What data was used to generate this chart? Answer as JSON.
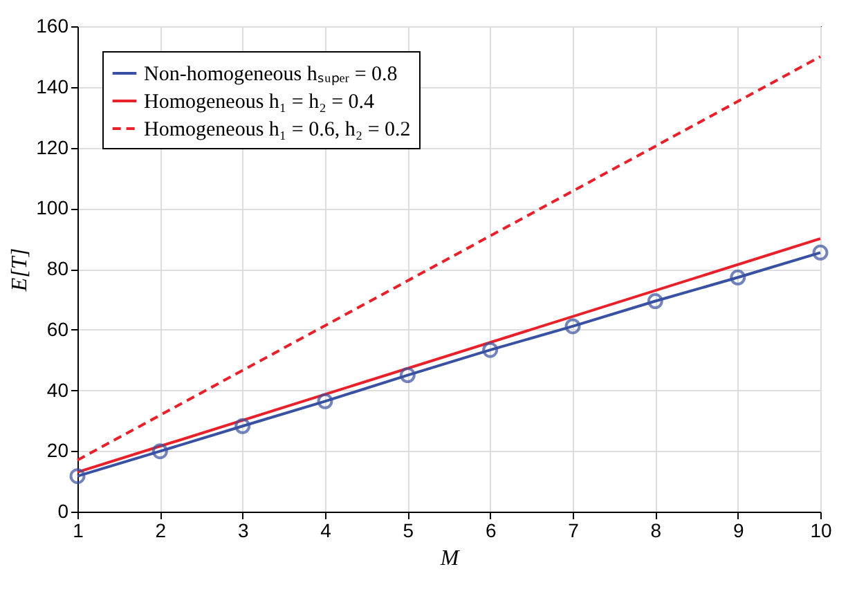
{
  "chart_data": {
    "type": "line",
    "xlabel": "M",
    "ylabel": "E[T]",
    "xlim": [
      1,
      10
    ],
    "xticks": [
      1,
      2,
      3,
      4,
      5,
      6,
      7,
      8,
      9,
      10
    ],
    "ylim": [
      0,
      160
    ],
    "yticks": [
      0,
      20,
      40,
      60,
      80,
      100,
      120,
      140,
      160
    ],
    "grid": true,
    "legend": "top left",
    "series": [
      {
        "name": "Non-homogeneous hₛᵤₚₑᵣ = 0.8",
        "color": "#3951a2",
        "marker": "circle",
        "line_style": "solid",
        "x": [
          1,
          2,
          3,
          4,
          5,
          6,
          7,
          8,
          9,
          10
        ],
        "values": [
          11.7,
          19.9,
          28.2,
          36.4,
          45,
          53.3,
          61.1,
          69.4,
          77.2,
          85.4
        ]
      },
      {
        "name": "Homogeneous h₁ = h₂ = 0.4",
        "color": "#e8202a",
        "marker": "none",
        "line_style": "solid",
        "x": [
          1,
          10
        ],
        "values": [
          13,
          90
        ]
      },
      {
        "name": "Homogeneous h₁ = 0.6, h₂ = 0.2",
        "color": "#e8202a",
        "marker": "none",
        "line_style": "dashed",
        "x": [
          1,
          10
        ],
        "values": [
          17,
          150
        ]
      }
    ]
  }
}
